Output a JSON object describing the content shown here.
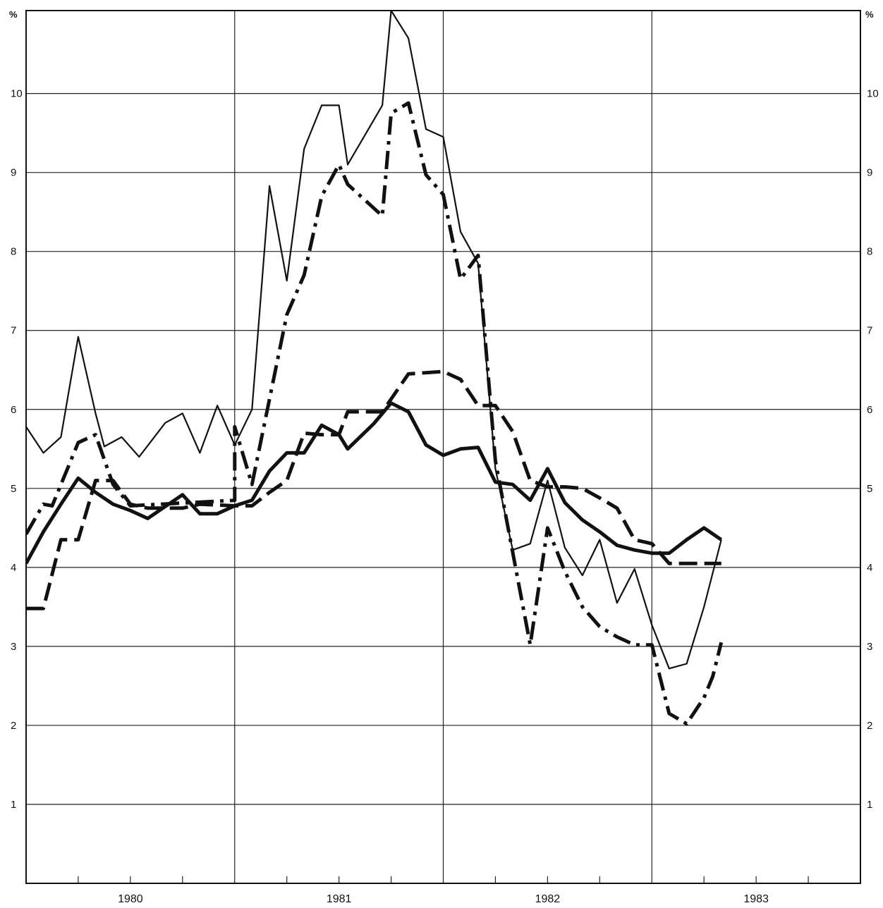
{
  "chart_data": {
    "type": "line",
    "title": "",
    "xlabel": "",
    "ylabel": "",
    "unit_left": "%",
    "unit_right": "%",
    "ylim": [
      0,
      11.05
    ],
    "xlim": [
      1979.5,
      1983.5
    ],
    "y_ticks": [
      1,
      2,
      3,
      4,
      5,
      6,
      7,
      8,
      9,
      10
    ],
    "y_tick_labels": [
      "1",
      "2",
      "3",
      "4",
      "5",
      "6",
      "7",
      "8",
      "9",
      "10"
    ],
    "x_gridlines": [
      1979.5,
      1980.5,
      1981.5,
      1982.5,
      1983.5
    ],
    "x_minor_ticks": [
      1979.75,
      1980.0,
      1980.25,
      1980.75,
      1981.0,
      1981.25,
      1981.75,
      1982.0,
      1982.25,
      1982.75,
      1983.0,
      1983.25
    ],
    "x_labels": [
      {
        "x": 1980.0,
        "label": "1980"
      },
      {
        "x": 1981.0,
        "label": "1981"
      },
      {
        "x": 1982.0,
        "label": "1982"
      },
      {
        "x": 1983.0,
        "label": "1983"
      }
    ],
    "grid": true,
    "series": [
      {
        "style": "thin-solid",
        "color": "#111111",
        "points": [
          [
            1979.5,
            5.78
          ],
          [
            1979.583,
            5.45
          ],
          [
            1979.667,
            5.65
          ],
          [
            1979.75,
            6.92
          ],
          [
            1979.833,
            5.95
          ],
          [
            1979.875,
            5.53
          ],
          [
            1979.958,
            5.65
          ],
          [
            1980.042,
            5.4
          ],
          [
            1980.167,
            5.83
          ],
          [
            1980.25,
            5.95
          ],
          [
            1980.333,
            5.45
          ],
          [
            1980.417,
            6.05
          ],
          [
            1980.5,
            5.55
          ],
          [
            1980.583,
            6.0
          ],
          [
            1980.667,
            8.83
          ],
          [
            1980.75,
            7.63
          ],
          [
            1980.833,
            9.3
          ],
          [
            1980.917,
            9.85
          ],
          [
            1981.0,
            9.85
          ],
          [
            1981.042,
            9.1
          ],
          [
            1981.208,
            9.85
          ],
          [
            1981.25,
            11.05
          ],
          [
            1981.333,
            10.7
          ],
          [
            1981.417,
            9.55
          ],
          [
            1981.5,
            9.45
          ],
          [
            1981.583,
            8.25
          ],
          [
            1981.667,
            7.85
          ],
          [
            1981.75,
            5.25
          ],
          [
            1981.833,
            4.22
          ],
          [
            1981.917,
            4.3
          ],
          [
            1982.0,
            5.1
          ],
          [
            1982.083,
            4.25
          ],
          [
            1982.167,
            3.9
          ],
          [
            1982.25,
            4.35
          ],
          [
            1982.333,
            3.55
          ],
          [
            1982.417,
            3.98
          ],
          [
            1982.5,
            3.27
          ],
          [
            1982.583,
            2.72
          ],
          [
            1982.667,
            2.78
          ],
          [
            1982.75,
            3.5
          ],
          [
            1982.833,
            4.35
          ]
        ]
      },
      {
        "style": "thick-dash-dot",
        "color": "#111111",
        "points": [
          [
            1979.5,
            4.42
          ],
          [
            1979.583,
            4.8
          ],
          [
            1979.625,
            4.78
          ],
          [
            1979.75,
            5.58
          ],
          [
            1979.833,
            5.68
          ],
          [
            1979.917,
            5.05
          ],
          [
            1980.0,
            4.78
          ],
          [
            1980.5,
            4.85
          ],
          [
            1980.5,
            5.78
          ],
          [
            1980.583,
            5.05
          ],
          [
            1980.75,
            7.2
          ],
          [
            1980.833,
            7.7
          ],
          [
            1980.917,
            8.7
          ],
          [
            1981.0,
            9.1
          ],
          [
            1981.042,
            8.85
          ],
          [
            1981.208,
            8.45
          ],
          [
            1981.25,
            9.75
          ],
          [
            1981.333,
            9.88
          ],
          [
            1981.417,
            8.97
          ],
          [
            1981.5,
            8.72
          ],
          [
            1981.583,
            7.65
          ],
          [
            1981.667,
            7.95
          ],
          [
            1981.75,
            5.35
          ],
          [
            1981.917,
            3.02
          ],
          [
            1982.0,
            4.5
          ],
          [
            1982.083,
            3.95
          ],
          [
            1982.167,
            3.5
          ],
          [
            1982.25,
            3.25
          ],
          [
            1982.333,
            3.12
          ],
          [
            1982.417,
            3.02
          ],
          [
            1982.5,
            3.02
          ],
          [
            1982.583,
            2.15
          ],
          [
            1982.667,
            2.02
          ],
          [
            1982.75,
            2.35
          ],
          [
            1982.792,
            2.62
          ],
          [
            1982.833,
            3.05
          ]
        ]
      },
      {
        "style": "thick-dashed",
        "color": "#111111",
        "points": [
          [
            1979.5,
            3.48
          ],
          [
            1979.583,
            3.48
          ],
          [
            1979.667,
            4.35
          ],
          [
            1979.75,
            4.35
          ],
          [
            1979.833,
            5.1
          ],
          [
            1979.917,
            5.1
          ],
          [
            1980.0,
            4.8
          ],
          [
            1980.083,
            4.75
          ],
          [
            1980.25,
            4.75
          ],
          [
            1980.333,
            4.8
          ],
          [
            1980.5,
            4.78
          ],
          [
            1980.583,
            4.78
          ],
          [
            1980.667,
            4.95
          ],
          [
            1980.75,
            5.1
          ],
          [
            1980.833,
            5.7
          ],
          [
            1980.917,
            5.68
          ],
          [
            1981.0,
            5.68
          ],
          [
            1981.042,
            5.97
          ],
          [
            1981.208,
            5.97
          ],
          [
            1981.333,
            6.45
          ],
          [
            1981.5,
            6.48
          ],
          [
            1981.583,
            6.38
          ],
          [
            1981.667,
            6.05
          ],
          [
            1981.75,
            6.05
          ],
          [
            1981.833,
            5.72
          ],
          [
            1981.917,
            5.1
          ],
          [
            1982.0,
            5.02
          ],
          [
            1982.083,
            5.02
          ],
          [
            1982.167,
            5.0
          ],
          [
            1982.25,
            4.88
          ],
          [
            1982.333,
            4.75
          ],
          [
            1982.417,
            4.35
          ],
          [
            1982.5,
            4.3
          ],
          [
            1982.583,
            4.05
          ],
          [
            1982.833,
            4.05
          ]
        ]
      },
      {
        "style": "thick-solid",
        "color": "#111111",
        "points": [
          [
            1979.5,
            4.05
          ],
          [
            1979.583,
            4.45
          ],
          [
            1979.667,
            4.8
          ],
          [
            1979.75,
            5.13
          ],
          [
            1979.833,
            4.95
          ],
          [
            1979.917,
            4.8
          ],
          [
            1980.0,
            4.72
          ],
          [
            1980.083,
            4.62
          ],
          [
            1980.25,
            4.92
          ],
          [
            1980.333,
            4.68
          ],
          [
            1980.417,
            4.68
          ],
          [
            1980.5,
            4.78
          ],
          [
            1980.583,
            4.85
          ],
          [
            1980.667,
            5.22
          ],
          [
            1980.75,
            5.45
          ],
          [
            1980.833,
            5.45
          ],
          [
            1980.917,
            5.8
          ],
          [
            1981.0,
            5.68
          ],
          [
            1981.042,
            5.5
          ],
          [
            1981.167,
            5.82
          ],
          [
            1981.25,
            6.08
          ],
          [
            1981.333,
            5.97
          ],
          [
            1981.417,
            5.55
          ],
          [
            1981.5,
            5.42
          ],
          [
            1981.583,
            5.5
          ],
          [
            1981.667,
            5.52
          ],
          [
            1981.75,
            5.08
          ],
          [
            1981.833,
            5.05
          ],
          [
            1981.917,
            4.85
          ],
          [
            1982.0,
            5.25
          ],
          [
            1982.083,
            4.82
          ],
          [
            1982.167,
            4.6
          ],
          [
            1982.25,
            4.45
          ],
          [
            1982.333,
            4.28
          ],
          [
            1982.417,
            4.22
          ],
          [
            1982.5,
            4.18
          ],
          [
            1982.583,
            4.18
          ],
          [
            1982.667,
            4.35
          ],
          [
            1982.75,
            4.5
          ],
          [
            1982.833,
            4.35
          ]
        ]
      }
    ]
  }
}
